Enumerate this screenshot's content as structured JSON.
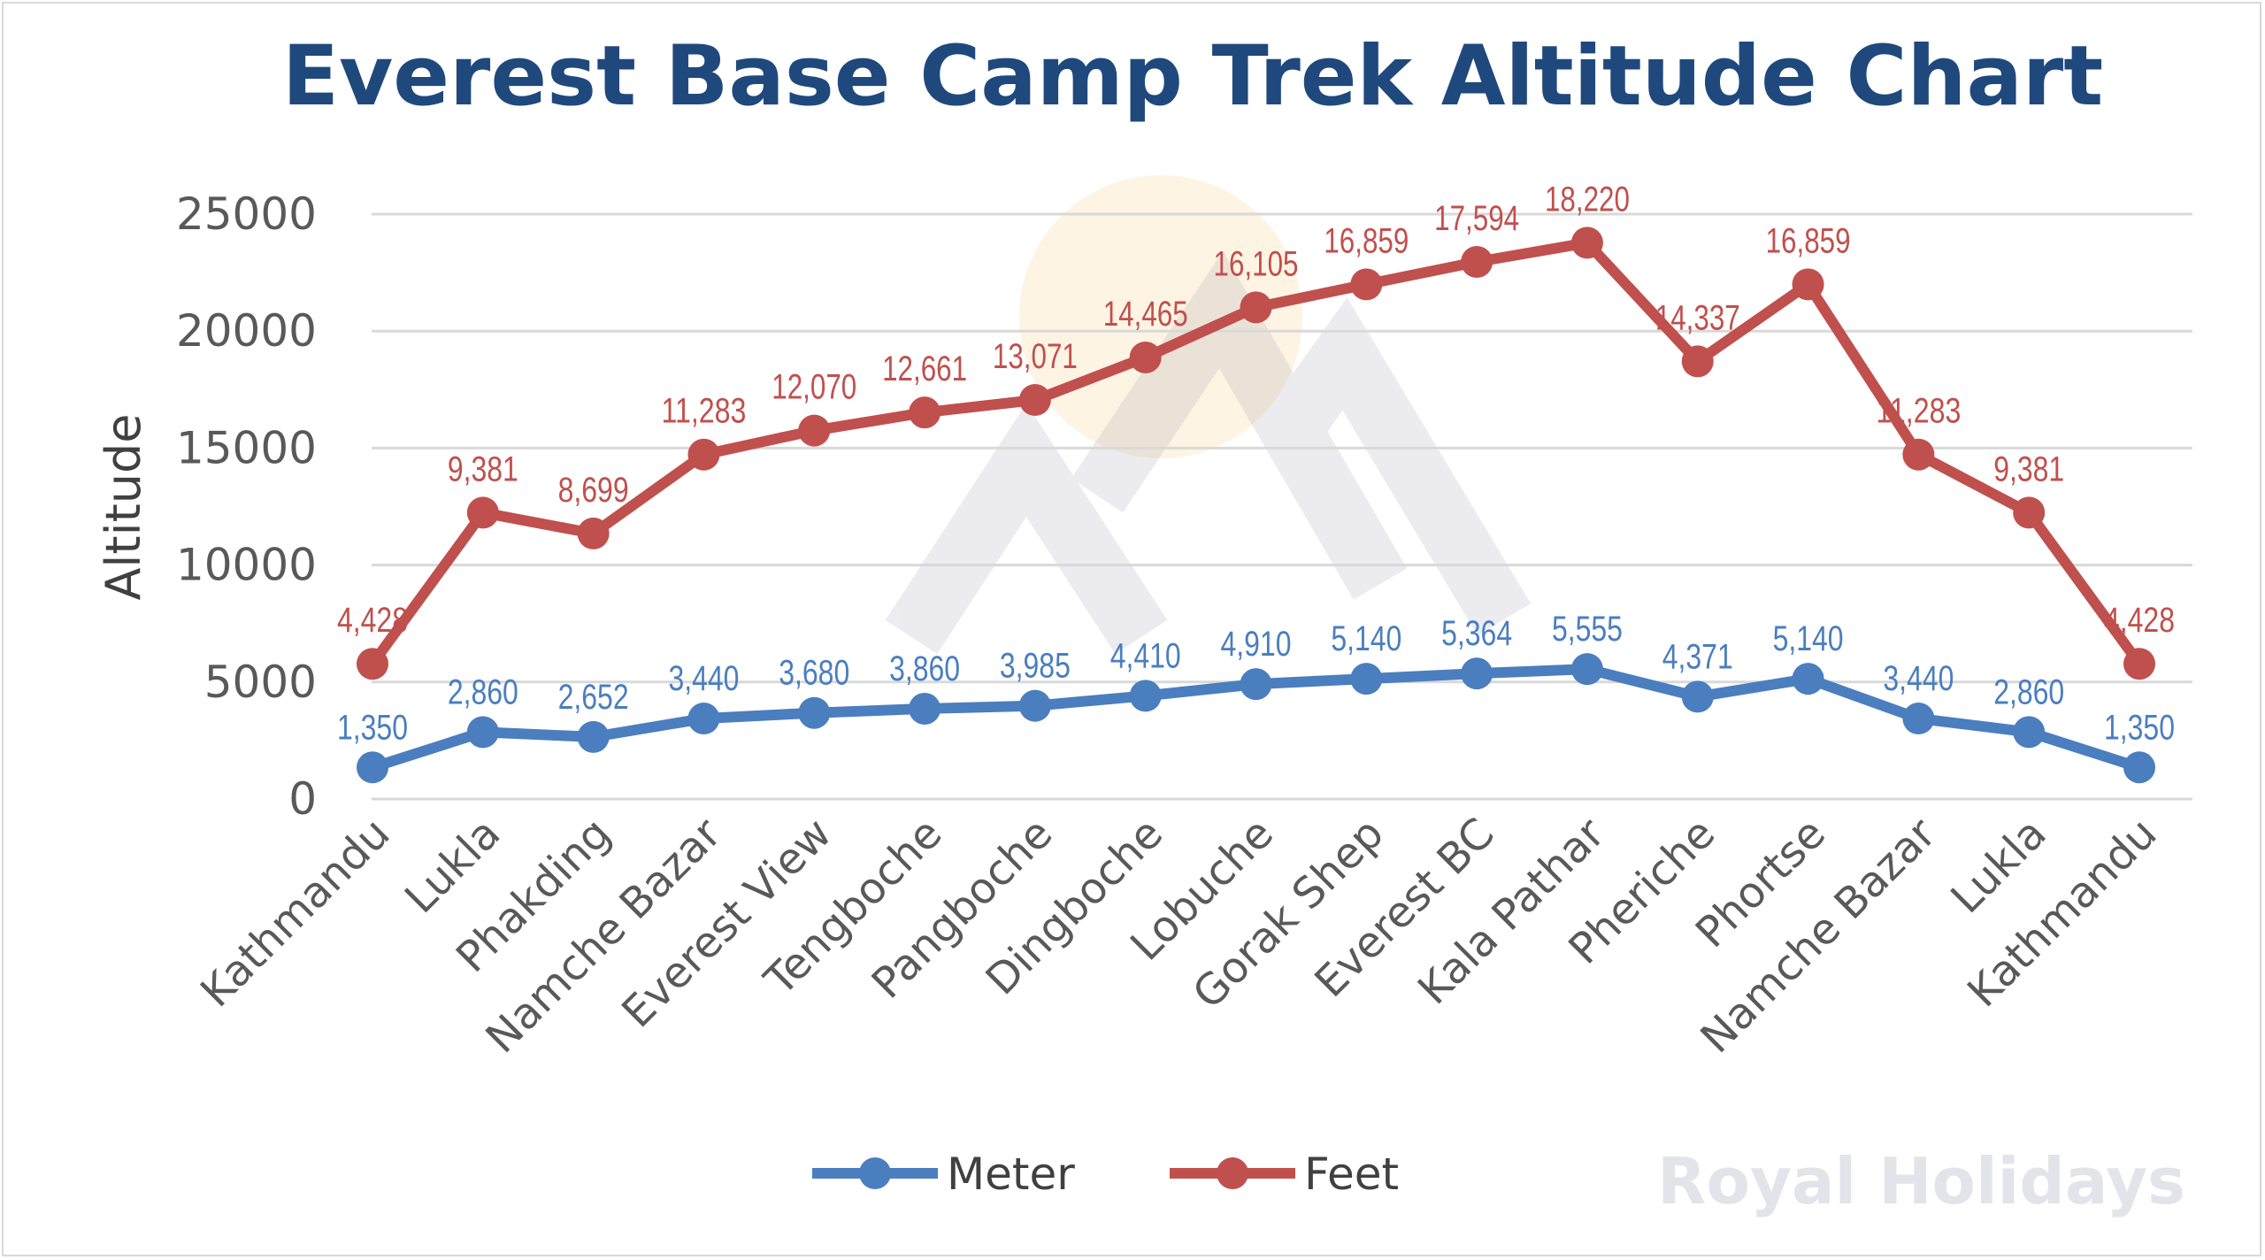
{
  "chart_data": {
    "type": "line",
    "stacked": true,
    "title": "Everest Base Camp Trek Altitude Chart",
    "xlabel": "",
    "ylabel": "Altitude",
    "ylim": [
      0,
      25000
    ],
    "yticks": [
      0,
      5000,
      10000,
      15000,
      20000,
      25000
    ],
    "grid": true,
    "legend_position": "bottom",
    "categories": [
      "Kathmandu",
      "Lukla",
      "Phakding",
      "Namche Bazar",
      "Everest View",
      "Tengboche",
      "Pangboche",
      "Dingboche",
      "Lobuche",
      "Gorak Shep",
      "Everest BC",
      "Kala Pathar",
      "Pheriche",
      "Phortse",
      "Namche Bazar",
      "Lukla",
      "Kathmandu"
    ],
    "series": [
      {
        "name": "Meter",
        "color": "#4a7ebf",
        "values": [
          1350,
          2860,
          2652,
          3440,
          3680,
          3860,
          3985,
          4410,
          4910,
          5140,
          5364,
          5555,
          4371,
          5140,
          3440,
          2860,
          1350
        ],
        "labels": [
          "1,350",
          "2,860",
          "2,652",
          "3,440",
          "3,680",
          "3,860",
          "3,985",
          "4,410",
          "4,910",
          "5,140",
          "5,364",
          "5,555",
          "4,371",
          "5,140",
          "3,440",
          "2,860",
          "1,350"
        ]
      },
      {
        "name": "Feet",
        "color": "#c0504d",
        "values": [
          4428,
          9381,
          8699,
          11283,
          12070,
          12661,
          13071,
          14465,
          16105,
          16859,
          17594,
          18220,
          14337,
          16859,
          11283,
          9381,
          4428
        ],
        "labels": [
          "4,428",
          "9,381",
          "8,699",
          "11,283",
          "12,070",
          "12,661",
          "13,071",
          "14,465",
          "16,105",
          "16,859",
          "17,594",
          "18,220",
          "14,337",
          "16,859",
          "11,283",
          "9,381",
          "4,428"
        ]
      }
    ]
  },
  "watermark": "Royal Holidays"
}
